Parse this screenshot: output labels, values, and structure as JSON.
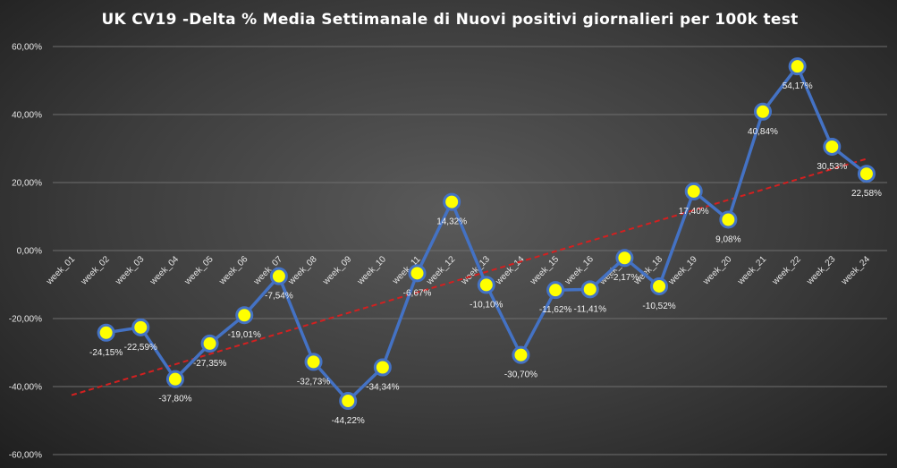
{
  "chart_data": {
    "type": "line",
    "title": "UK  CV19  -Delta % Media Settimanale di Nuovi positivi giornalieri per 100k test",
    "xlabel": "",
    "ylabel": "",
    "categories": [
      "week_01",
      "week_02",
      "week_03",
      "week_04",
      "week_05",
      "week_06",
      "week_07",
      "week_08",
      "week_09",
      "week_10",
      "week_11",
      "week_12",
      "week_13",
      "week_14",
      "week_15",
      "week_16",
      "week_17",
      "week_18",
      "week_19",
      "week_20",
      "week_21",
      "week_22",
      "week_23",
      "week_24"
    ],
    "series": [
      {
        "values": [
          null,
          -24.15,
          -22.59,
          -37.8,
          -27.35,
          -19.01,
          -7.54,
          -32.73,
          -44.22,
          -34.34,
          -6.67,
          14.32,
          -10.1,
          -30.7,
          -11.62,
          -11.41,
          -2.17,
          -10.52,
          17.4,
          9.08,
          40.84,
          54.17,
          30.53,
          22.58
        ],
        "data_labels": [
          "",
          "-24,15%",
          "-22,59%",
          "-37,80%",
          "-27,35%",
          "-19,01%",
          "-7,54%",
          "-32,73%",
          "-44,22%",
          "-34,34%",
          "-6,67%",
          "14,32%",
          "-10,10%",
          "-30,70%",
          "-11,62%",
          "-11,41%",
          "-2,17%",
          "-10,52%",
          "17,40%",
          "9,08%",
          "40,84%",
          "54,17%",
          "30,53%",
          "22,58%"
        ],
        "line_color": "#4472c4",
        "marker_color": "#ffff00"
      }
    ],
    "trendline": {
      "type": "linear",
      "color": "#d32020",
      "style": "dashed"
    },
    "ylim": [
      -60,
      60
    ],
    "yticks": [
      60,
      40,
      20,
      0,
      -20,
      -40,
      -60
    ],
    "ytick_labels": [
      "60,00%",
      "40,00%",
      "20,00%",
      "0,00%",
      "-20,00%",
      "-40,00%",
      "-60,00%"
    ],
    "grid": true,
    "legend": "none"
  }
}
